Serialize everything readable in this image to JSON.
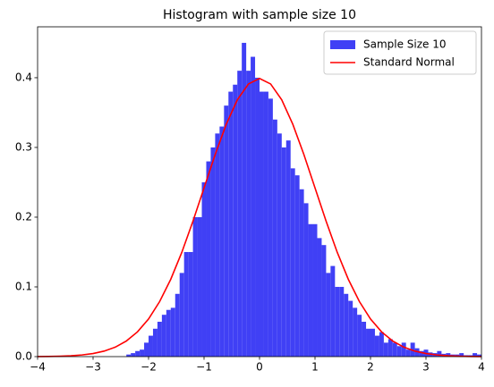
{
  "chart_data": {
    "type": "histogram",
    "title": "Histogram with sample size 10",
    "bins": [
      -2.4,
      -2.32,
      -2.24,
      -2.16,
      -2.08,
      -2,
      -1.92,
      -1.84,
      -1.76,
      -1.68,
      -1.6,
      -1.52,
      -1.44,
      -1.36,
      -1.28,
      -1.2,
      -1.12,
      -1.04,
      -0.96,
      -0.88,
      -0.8,
      -0.72,
      -0.64,
      -0.56,
      -0.48,
      -0.4,
      -0.32,
      -0.24,
      -0.16,
      -0.08,
      0,
      0.08,
      0.16,
      0.24,
      0.32,
      0.4,
      0.48,
      0.56,
      0.64,
      0.72,
      0.8,
      0.88,
      0.96,
      1.04,
      1.12,
      1.2,
      1.28,
      1.36,
      1.44,
      1.52,
      1.6,
      1.68,
      1.76,
      1.84,
      1.92,
      2,
      2.08,
      2.16,
      2.24,
      2.32,
      2.4,
      2.48,
      2.56,
      2.64,
      2.72,
      2.8,
      2.88,
      2.96,
      3.04,
      3.12,
      3.2,
      3.28,
      3.36,
      3.44,
      3.52,
      3.6,
      3.68,
      3.76,
      3.84,
      3.92,
      4
    ],
    "name": "Sample Size 10",
    "color": "#4040f5",
    "values": [
      0.003,
      0.005,
      0.008,
      0.01,
      0.02,
      0.03,
      0.04,
      0.05,
      0.06,
      0.067,
      0.07,
      0.09,
      0.12,
      0.15,
      0.15,
      0.2,
      0.2,
      0.25,
      0.28,
      0.3,
      0.32,
      0.33,
      0.36,
      0.38,
      0.39,
      0.41,
      0.45,
      0.41,
      0.43,
      0.4,
      0.38,
      0.38,
      0.37,
      0.34,
      0.32,
      0.3,
      0.31,
      0.27,
      0.26,
      0.24,
      0.22,
      0.19,
      0.19,
      0.17,
      0.16,
      0.12,
      0.13,
      0.1,
      0.1,
      0.09,
      0.08,
      0.07,
      0.06,
      0.05,
      0.04,
      0.04,
      0.03,
      0.035,
      0.02,
      0.025,
      0.02,
      0.015,
      0.02,
      0.01,
      0.02,
      0.012,
      0.008,
      0.01,
      0.006,
      0.005,
      0.008,
      0.004,
      0.005,
      0.003,
      0.003,
      0.005,
      0.002,
      0.002,
      0.005,
      0.003
    ],
    "lines": [
      {
        "name": "Standard Normal",
        "color": "#ff0000",
        "x": [
          -4,
          -3.8,
          -3.6,
          -3.4,
          -3.2,
          -3,
          -2.8,
          -2.6,
          -2.4,
          -2.2,
          -2,
          -1.8,
          -1.6,
          -1.4,
          -1.2,
          -1,
          -0.8,
          -0.6,
          -0.4,
          -0.2,
          0,
          0.2,
          0.4,
          0.6,
          0.8,
          1,
          1.2,
          1.4,
          1.6,
          1.8,
          2,
          2.2,
          2.4,
          2.6,
          2.8,
          3,
          3.2,
          3.4,
          3.6,
          3.8,
          4
        ],
        "values": [
          0.0001,
          0.0003,
          0.0006,
          0.0012,
          0.0024,
          0.0044,
          0.0079,
          0.0136,
          0.0224,
          0.0355,
          0.054,
          0.079,
          0.1109,
          0.1497,
          0.1942,
          0.242,
          0.2897,
          0.3332,
          0.3683,
          0.391,
          0.3989,
          0.391,
          0.3683,
          0.3332,
          0.2897,
          0.242,
          0.1942,
          0.1497,
          0.1109,
          0.079,
          0.054,
          0.0355,
          0.0224,
          0.0136,
          0.0079,
          0.0044,
          0.0024,
          0.0012,
          0.0006,
          0.0003,
          0.0001
        ]
      }
    ],
    "xlim": [
      -4,
      4
    ],
    "ylim": [
      0,
      0.473
    ],
    "xticks": [
      {
        "value": -4,
        "label": "−4"
      },
      {
        "value": -3,
        "label": "−3"
      },
      {
        "value": -2,
        "label": "−2"
      },
      {
        "value": -1,
        "label": "−1"
      },
      0,
      1,
      2,
      3,
      4
    ],
    "yticks": [
      {
        "value": 0,
        "label": "0.0"
      },
      0.1,
      0.2,
      0.3,
      0.4
    ],
    "legend": "upper right"
  }
}
